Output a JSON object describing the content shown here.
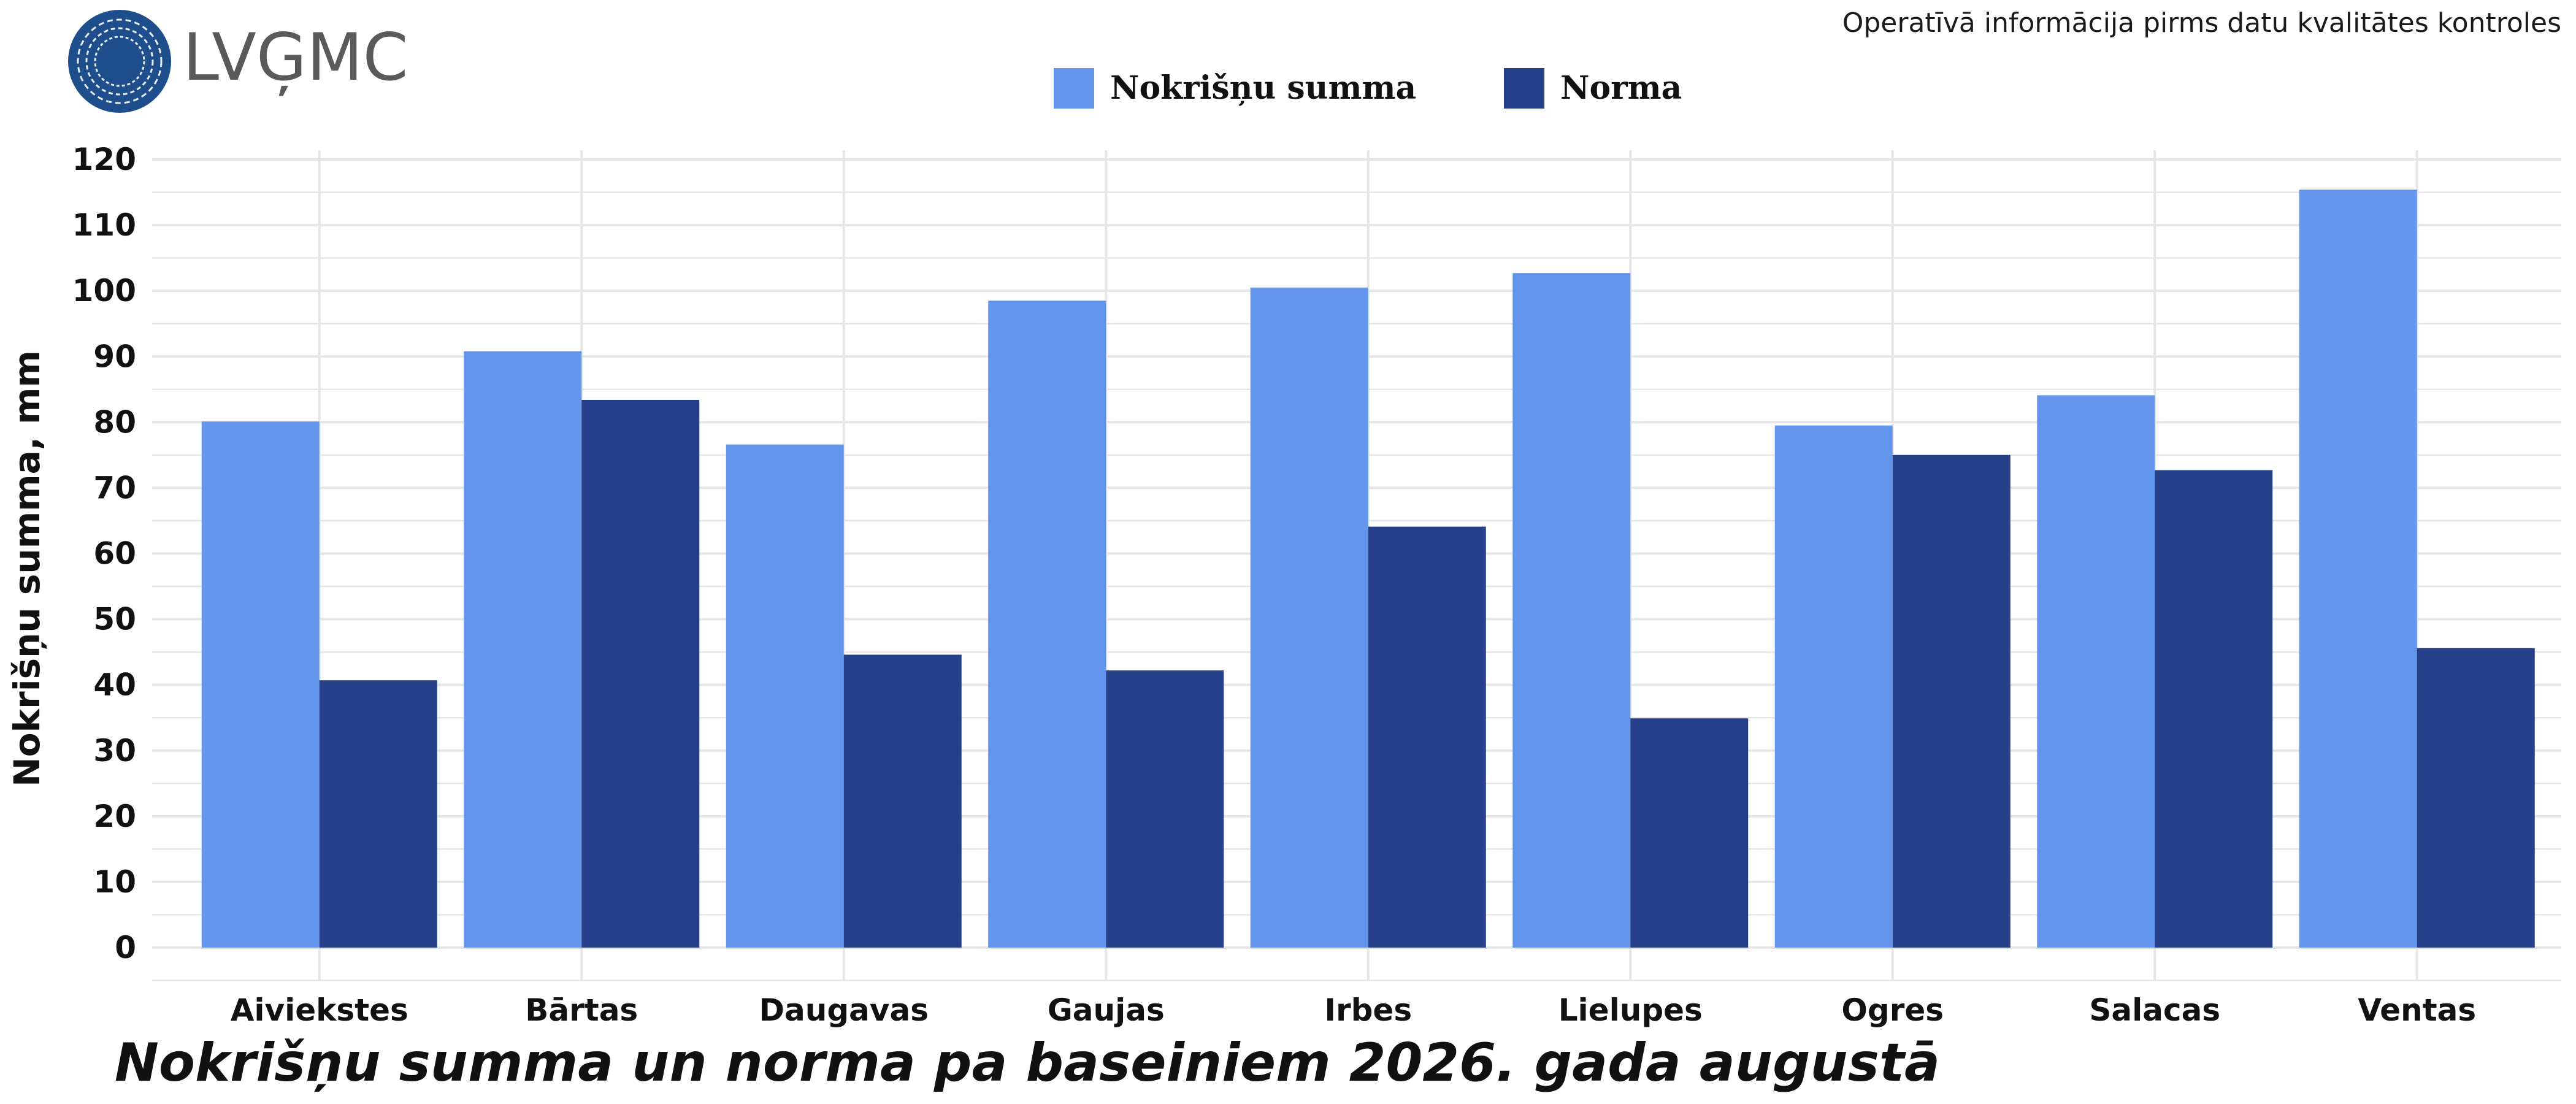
{
  "logo": {
    "text": "LVĢMC",
    "color": "#1f4e8c"
  },
  "note": "Operatīvā informācija pirms datu kvalitātes kontroles",
  "colors": {
    "series_1": "#6495ec",
    "series_2": "#26408b",
    "grid": "#e6e6e6"
  },
  "chart_data": {
    "type": "bar",
    "title": "Nokrišņu summa un norma pa baseiniem 2026. gada augustā",
    "xlabel": "",
    "ylabel": "Nokrišņu summa, mm",
    "ylim": [
      0,
      120
    ],
    "yticks": [
      0,
      10,
      20,
      30,
      40,
      50,
      60,
      70,
      80,
      90,
      100,
      110,
      120
    ],
    "categories": [
      "Aiviekstes",
      "Bārtas",
      "Daugavas",
      "Gaujas",
      "Irbes",
      "Lielupes",
      "Ogres",
      "Salacas",
      "Ventas"
    ],
    "series": [
      {
        "name": "Nokrišņu summa",
        "color": "#6495ec",
        "values": [
          80.1,
          90.8,
          76.6,
          98.5,
          100.5,
          102.7,
          79.5,
          84.1,
          115.4
        ]
      },
      {
        "name": "Norma",
        "color": "#26408b",
        "values": [
          40.7,
          83.4,
          44.6,
          42.2,
          64.1,
          34.9,
          75.0,
          72.7,
          45.6
        ]
      }
    ],
    "grid": true,
    "legend_position": "top-center"
  }
}
